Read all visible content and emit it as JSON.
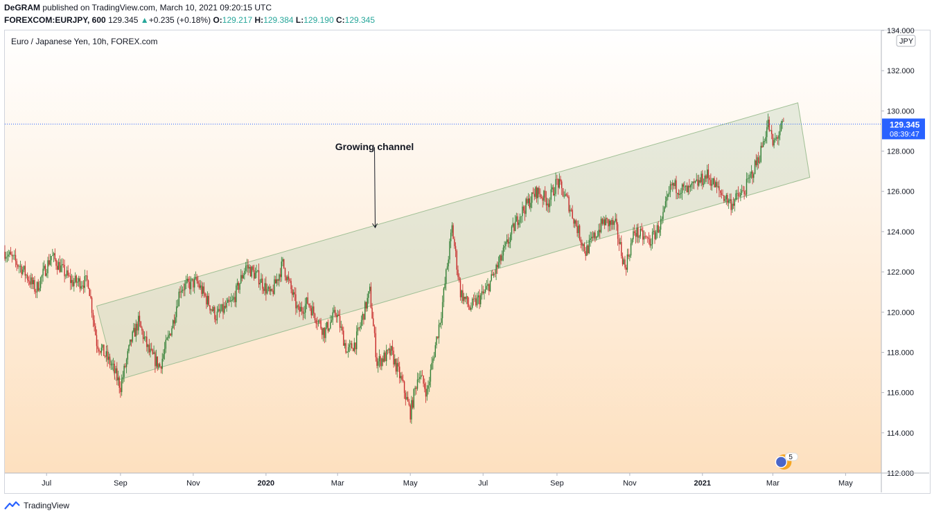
{
  "header": {
    "author": "DeGRAM",
    "published": " published on TradingView.com, March 10, 2021 09:20:15 UTC",
    "symbol": "FOREXCOM:EURJPY, 600",
    "last": "129.345",
    "change": "+0.235 (+0.18%)",
    "o_label": "O:",
    "o_val": "129.217",
    "h_label": "H:",
    "h_val": "129.384",
    "l_label": "L:",
    "l_val": "129.190",
    "c_label": "C:",
    "c_val": "129.345"
  },
  "footer": {
    "brand": "TradingView"
  },
  "colors": {
    "up": "#26a69a",
    "down": "#ef5350",
    "candle_up": "#2e7d32",
    "candle_down": "#c62828",
    "channel_fill": "#c8d8c0",
    "channel_stroke": "#9fbf94",
    "price_line": "#2962ff",
    "badge": "#2962ff"
  },
  "chart_data": {
    "type": "candlestick",
    "title": "Euro / Japanese Yen, 10h, FOREX.com",
    "currency_badge": "JPY",
    "ylim": [
      112,
      134
    ],
    "y_ticks": [
      "112.000",
      "114.000",
      "116.000",
      "118.000",
      "120.000",
      "122.000",
      "124.000",
      "126.000",
      "128.000",
      "130.000",
      "132.000",
      "134.000"
    ],
    "x_ticks": [
      {
        "label": "Jul",
        "date": "2019-07-01",
        "bold": false
      },
      {
        "label": "Sep",
        "date": "2019-09-01",
        "bold": false
      },
      {
        "label": "Nov",
        "date": "2019-11-01",
        "bold": false
      },
      {
        "label": "2020",
        "date": "2020-01-01",
        "bold": true
      },
      {
        "label": "Mar",
        "date": "2020-03-01",
        "bold": false
      },
      {
        "label": "May",
        "date": "2020-05-01",
        "bold": false
      },
      {
        "label": "Jul",
        "date": "2020-07-01",
        "bold": false
      },
      {
        "label": "Sep",
        "date": "2020-09-01",
        "bold": false
      },
      {
        "label": "Nov",
        "date": "2020-11-01",
        "bold": false
      },
      {
        "label": "2021",
        "date": "2021-01-01",
        "bold": true
      },
      {
        "label": "Mar",
        "date": "2021-03-01",
        "bold": false
      },
      {
        "label": "May",
        "date": "2021-05-01",
        "bold": false
      }
    ],
    "x_range": [
      "2019-05-27",
      "2021-05-31"
    ],
    "path": [
      [
        "2019-05-27",
        123.0
      ],
      [
        "2019-06-10",
        122.2
      ],
      [
        "2019-06-22",
        121.1
      ],
      [
        "2019-07-05",
        122.8
      ],
      [
        "2019-07-22",
        121.5
      ],
      [
        "2019-08-05",
        121.5
      ],
      [
        "2019-08-12",
        118.5
      ],
      [
        "2019-08-25",
        117.3
      ],
      [
        "2019-09-01",
        116.3
      ],
      [
        "2019-09-10",
        118.6
      ],
      [
        "2019-09-16",
        119.5
      ],
      [
        "2019-09-25",
        118.0
      ],
      [
        "2019-10-04",
        117.3
      ],
      [
        "2019-10-15",
        119.5
      ],
      [
        "2019-10-21",
        121.2
      ],
      [
        "2019-11-04",
        121.5
      ],
      [
        "2019-11-20",
        119.8
      ],
      [
        "2019-12-04",
        120.5
      ],
      [
        "2019-12-15",
        122.3
      ],
      [
        "2019-12-26",
        121.7
      ],
      [
        "2020-01-05",
        120.8
      ],
      [
        "2020-01-15",
        122.4
      ],
      [
        "2020-01-28",
        120.0
      ],
      [
        "2020-02-05",
        120.5
      ],
      [
        "2020-02-19",
        119.0
      ],
      [
        "2020-02-29",
        120.0
      ],
      [
        "2020-03-09",
        118.0
      ],
      [
        "2020-03-16",
        118.5
      ],
      [
        "2020-03-28",
        121.0
      ],
      [
        "2020-04-03",
        117.5
      ],
      [
        "2020-04-15",
        118.0
      ],
      [
        "2020-04-24",
        116.5
      ],
      [
        "2020-05-01",
        115.0
      ],
      [
        "2020-05-08",
        117.0
      ],
      [
        "2020-05-15",
        116.0
      ],
      [
        "2020-05-27",
        120.0
      ],
      [
        "2020-06-05",
        124.2
      ],
      [
        "2020-06-12",
        121.0
      ],
      [
        "2020-06-20",
        120.2
      ],
      [
        "2020-07-03",
        121.0
      ],
      [
        "2020-07-15",
        122.5
      ],
      [
        "2020-07-31",
        124.8
      ],
      [
        "2020-08-15",
        126.0
      ],
      [
        "2020-08-25",
        125.5
      ],
      [
        "2020-09-01",
        126.5
      ],
      [
        "2020-09-10",
        125.5
      ],
      [
        "2020-09-25",
        123.0
      ],
      [
        "2020-10-10",
        124.5
      ],
      [
        "2020-10-20",
        124.3
      ],
      [
        "2020-10-28",
        122.2
      ],
      [
        "2020-11-05",
        124.0
      ],
      [
        "2020-11-18",
        123.5
      ],
      [
        "2020-11-28",
        124.5
      ],
      [
        "2020-12-06",
        126.3
      ],
      [
        "2020-12-20",
        126.0
      ],
      [
        "2021-01-05",
        126.8
      ],
      [
        "2021-01-15",
        126.0
      ],
      [
        "2021-01-25",
        125.4
      ],
      [
        "2021-02-05",
        126.0
      ],
      [
        "2021-02-18",
        127.8
      ],
      [
        "2021-02-25",
        129.4
      ],
      [
        "2021-03-01",
        128.3
      ],
      [
        "2021-03-10",
        129.345
      ]
    ],
    "current_price": {
      "value": "129.345",
      "countdown": "08:39:47"
    },
    "channel": {
      "upper": [
        [
          "2019-08-12",
          120.3
        ],
        [
          "2021-03-22",
          130.4
        ]
      ],
      "lower": [
        [
          "2019-08-28",
          116.6
        ],
        [
          "2021-04-01",
          126.7
        ]
      ]
    },
    "annotation": {
      "text": "Growing channel",
      "date": "2020-04-01",
      "arrow_from": 128.2,
      "arrow_to": 124.2
    },
    "events_badge": "5"
  }
}
